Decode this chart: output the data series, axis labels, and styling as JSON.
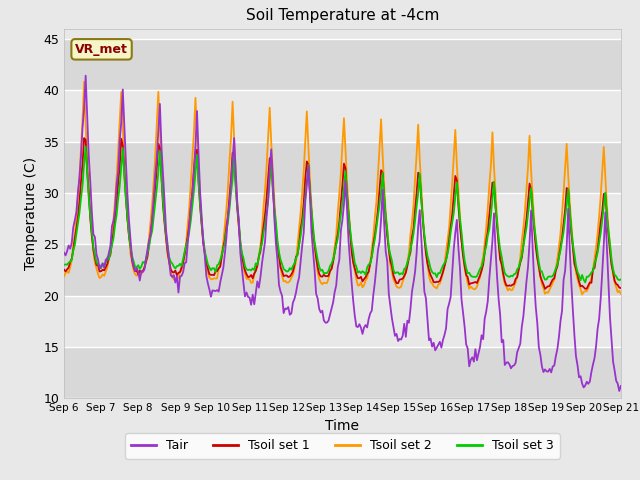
{
  "title": "Soil Temperature at -4cm",
  "xlabel": "Time",
  "ylabel": "Temperature (C)",
  "ylim": [
    10,
    46
  ],
  "yticks": [
    10,
    15,
    20,
    25,
    30,
    35,
    40,
    45
  ],
  "bg_color": "#e8e8e8",
  "line_colors": {
    "Tair": "#9933cc",
    "Tsoil1": "#cc0000",
    "Tsoil2": "#ff9900",
    "Tsoil3": "#00cc00"
  },
  "legend_labels": [
    "Tair",
    "Tsoil set 1",
    "Tsoil set 2",
    "Tsoil set 3"
  ],
  "annotation_text": "VR_met",
  "tick_labels": [
    "Sep 6",
    "Sep 7",
    "Sep 8",
    "Sep 9",
    "Sep 10",
    "Sep 11",
    "Sep 12",
    "Sep 13",
    "Sep 14",
    "Sep 15",
    "Sep 16",
    "Sep 17",
    "Sep 18",
    "Sep 19",
    "Sep 20",
    "Sep 21"
  ]
}
